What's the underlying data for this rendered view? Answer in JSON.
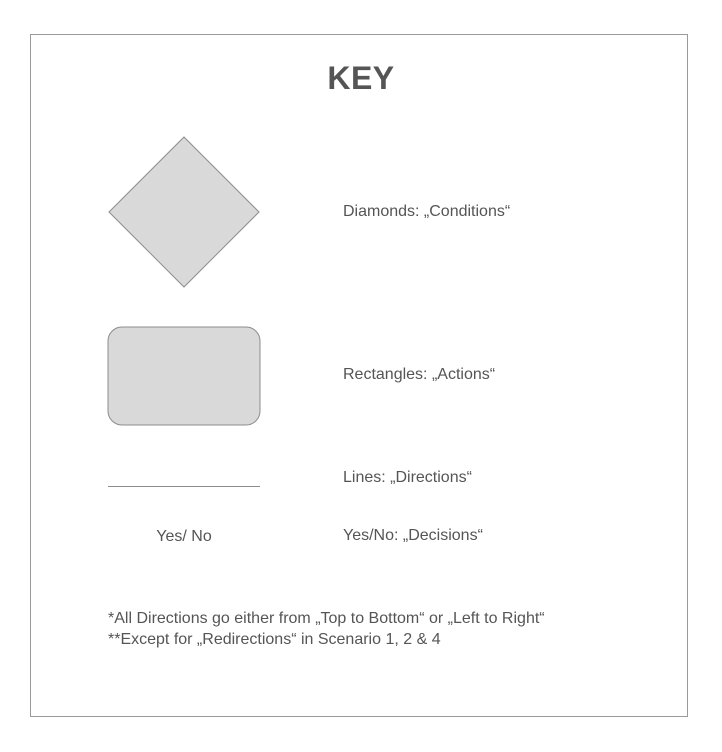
{
  "title": "KEY",
  "legend": [
    {
      "shape": "diamond",
      "description": "Diamonds: „Conditions“"
    },
    {
      "shape": "rounded-rectangle",
      "description": "Rectangles: „Actions“"
    },
    {
      "shape": "line",
      "description": "Lines: „Directions“"
    },
    {
      "shape": "text",
      "sample": "Yes/ No",
      "description": "Yes/No: „Decisions“"
    }
  ],
  "notes": [
    "*All Directions go either from „Top to Bottom“ or „Left to Right“",
    "**Except for „Redirections“ in Scenario 1, 2 & 4"
  ],
  "colors": {
    "shape_fill": "#d9d9d9",
    "shape_stroke": "#8c8c8c",
    "text": "#555555",
    "frame": "#9a9a9a"
  }
}
